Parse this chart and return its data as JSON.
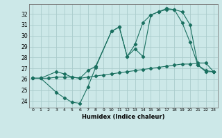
{
  "xlabel": "Humidex (Indice chaleur)",
  "xlim": [
    -0.5,
    23.5
  ],
  "ylim": [
    23.4,
    32.9
  ],
  "yticks": [
    24,
    25,
    26,
    27,
    28,
    29,
    30,
    31,
    32
  ],
  "xticks": [
    0,
    1,
    2,
    3,
    4,
    5,
    6,
    7,
    8,
    9,
    10,
    11,
    12,
    13,
    14,
    15,
    16,
    17,
    18,
    19,
    20,
    21,
    22,
    23
  ],
  "bg_color": "#cce8e8",
  "grid_color": "#aacccc",
  "line_color": "#1a7060",
  "lines": [
    {
      "x": [
        0,
        1,
        2,
        3,
        4,
        5,
        6,
        7,
        8,
        9,
        10,
        11,
        12,
        13,
        14,
        15,
        16,
        17,
        18,
        19,
        20,
        21,
        22,
        23
      ],
      "y": [
        26.1,
        26.1,
        26.1,
        26.2,
        26.2,
        26.2,
        26.1,
        26.2,
        26.3,
        26.4,
        26.5,
        26.6,
        26.7,
        26.8,
        26.9,
        27.0,
        27.1,
        27.2,
        27.3,
        27.4,
        27.4,
        27.5,
        27.5,
        26.7
      ]
    },
    {
      "x": [
        0,
        1,
        3,
        4,
        5,
        6,
        7,
        8,
        10,
        11,
        12,
        13,
        14,
        15,
        16,
        17,
        18,
        19,
        20,
        21,
        22,
        23
      ],
      "y": [
        26.1,
        26.1,
        24.8,
        24.3,
        23.9,
        23.8,
        25.3,
        27.1,
        30.4,
        30.8,
        28.1,
        28.8,
        28.1,
        31.9,
        32.2,
        32.4,
        32.4,
        31.2,
        29.4,
        27.3,
        26.7,
        26.7
      ]
    },
    {
      "x": [
        0,
        1,
        3,
        4,
        5,
        6,
        7,
        8,
        10,
        11,
        12,
        13,
        14,
        15,
        16,
        17,
        18,
        19,
        20,
        21,
        22,
        23
      ],
      "y": [
        26.1,
        26.1,
        26.7,
        26.5,
        26.2,
        26.1,
        26.8,
        27.2,
        30.4,
        30.8,
        28.1,
        29.2,
        31.2,
        31.9,
        32.2,
        32.5,
        32.4,
        32.2,
        31.0,
        27.3,
        26.8,
        26.7
      ]
    }
  ]
}
